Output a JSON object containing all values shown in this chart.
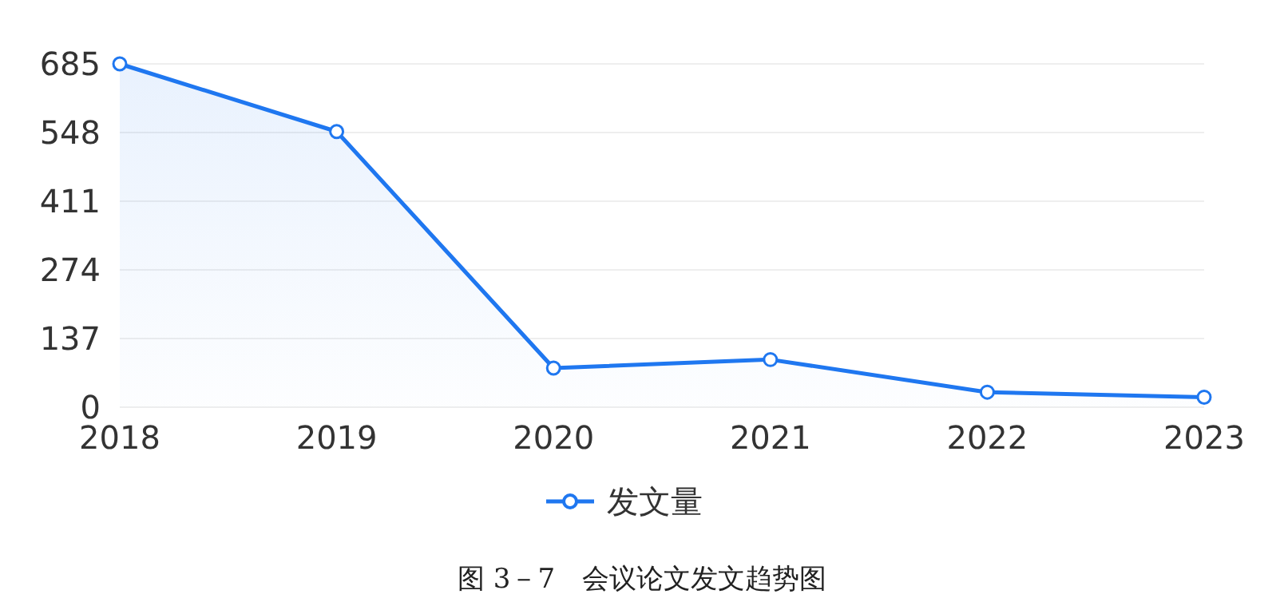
{
  "chart_data": {
    "type": "area",
    "categories": [
      "2018",
      "2019",
      "2020",
      "2021",
      "2022",
      "2023"
    ],
    "series": [
      {
        "name": "发文量",
        "color": "#1f77f0",
        "values": [
          685,
          550,
          78,
          95,
          30,
          20
        ]
      }
    ],
    "ylim": [
      0,
      685
    ],
    "yticks": [
      0,
      137,
      274,
      411,
      548,
      685
    ],
    "grid": "y",
    "marker": "circle",
    "legend": "bottom",
    "annotations": [
      "图 3－7　会议论文发文趋势图"
    ]
  }
}
